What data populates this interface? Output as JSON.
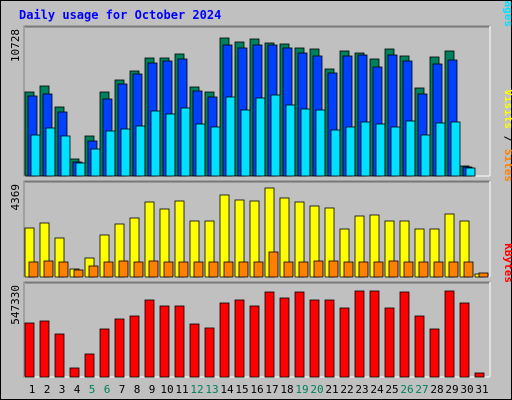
{
  "title": "Daily usage for October 2024",
  "colors": {
    "background": "#c0c0c0",
    "title": "#0000ff",
    "hits": "#00805c",
    "files": "#0040ff",
    "pages": "#00e0ff",
    "visits": "#ffff00",
    "sites": "#ff8000",
    "kbytes": "#ff0000",
    "weekend": "#00805c",
    "weekday": "#000000"
  },
  "chart_data": [
    {
      "type": "bar",
      "panel": "hits-files-pages",
      "max_label": "10728",
      "ymax": 10728,
      "right_label": [
        {
          "text": "Pages",
          "color": "#00e0ff"
        },
        {
          "text": " / ",
          "color": "#000000"
        },
        {
          "text": "Files",
          "color": "#0040ff"
        },
        {
          "text": " / ",
          "color": "#000000"
        },
        {
          "text": "Hits",
          "color": "#00805c"
        }
      ],
      "categories": [
        "1",
        "2",
        "3",
        "4",
        "5",
        "6",
        "7",
        "8",
        "9",
        "10",
        "11",
        "12",
        "13",
        "14",
        "15",
        "16",
        "17",
        "18",
        "19",
        "20",
        "21",
        "22",
        "23",
        "24",
        "25",
        "26",
        "27",
        "28",
        "29",
        "30",
        "31"
      ],
      "series": [
        {
          "name": "Hits",
          "color": "#00805c",
          "values": [
            6150,
            6570,
            5040,
            1230,
            2930,
            6150,
            7010,
            7660,
            8620,
            8620,
            8900,
            6510,
            6150,
            10040,
            9800,
            9980,
            9740,
            9620,
            9370,
            9250,
            7820,
            9130,
            8960,
            8530,
            9250,
            8770,
            6450,
            8660,
            9130,
            750,
            0
          ]
        },
        {
          "name": "Files",
          "color": "#0040ff",
          "values": [
            5820,
            5960,
            4700,
            1050,
            2570,
            5590,
            6720,
            7430,
            8240,
            8370,
            8520,
            6220,
            5800,
            9550,
            9360,
            9560,
            9550,
            9310,
            8960,
            8780,
            7500,
            8730,
            8840,
            7970,
            8850,
            8360,
            5990,
            8140,
            8480,
            640,
            0
          ]
        },
        {
          "name": "Pages",
          "color": "#00e0ff",
          "values": [
            3010,
            3500,
            2940,
            930,
            1940,
            3250,
            3430,
            3680,
            4750,
            4510,
            4930,
            3760,
            3610,
            5780,
            4810,
            5660,
            5900,
            5170,
            4890,
            4810,
            3390,
            3550,
            3920,
            3810,
            3540,
            4020,
            3010,
            3900,
            3910,
            580,
            0
          ]
        }
      ]
    },
    {
      "type": "bar",
      "panel": "visits-sites",
      "max_label": "4369",
      "ymax": 4369,
      "right_label": [
        {
          "text": "Sites",
          "color": "#ff8000"
        },
        {
          "text": " / ",
          "color": "#000000"
        },
        {
          "text": "Visits",
          "color": "#ffff00"
        }
      ],
      "categories": [
        "1",
        "2",
        "3",
        "4",
        "5",
        "6",
        "7",
        "8",
        "9",
        "10",
        "11",
        "12",
        "13",
        "14",
        "15",
        "16",
        "17",
        "18",
        "19",
        "20",
        "21",
        "22",
        "23",
        "24",
        "25",
        "26",
        "27",
        "28",
        "29",
        "30",
        "31"
      ],
      "series": [
        {
          "name": "Visits",
          "color": "#ffff00",
          "values": [
            2280,
            2520,
            1830,
            370,
            910,
            1990,
            2480,
            2770,
            3500,
            3210,
            3570,
            2630,
            2610,
            3840,
            3640,
            3560,
            4160,
            3690,
            3520,
            3320,
            3260,
            2250,
            2880,
            2890,
            2630,
            2640,
            2260,
            2250,
            2980,
            2620,
            150
          ]
        },
        {
          "name": "Sites",
          "color": "#ff8000",
          "values": [
            720,
            760,
            720,
            350,
            530,
            710,
            730,
            720,
            730,
            720,
            710,
            710,
            710,
            720,
            720,
            720,
            1170,
            720,
            720,
            730,
            730,
            700,
            720,
            720,
            730,
            720,
            720,
            720,
            700,
            690,
            170
          ]
        }
      ]
    },
    {
      "type": "bar",
      "panel": "kbytes",
      "max_label": "547330",
      "ymax": 547330,
      "right_label": [
        {
          "text": "KBytes",
          "color": "#ff0000"
        }
      ],
      "categories": [
        "1",
        "2",
        "3",
        "4",
        "5",
        "6",
        "7",
        "8",
        "9",
        "10",
        "11",
        "12",
        "13",
        "14",
        "15",
        "16",
        "17",
        "18",
        "19",
        "20",
        "21",
        "22",
        "23",
        "24",
        "25",
        "26",
        "27",
        "28",
        "29",
        "30",
        "31"
      ],
      "series": [
        {
          "name": "KBytes",
          "color": "#ff0000",
          "values": [
            318600,
            331100,
            257000,
            53900,
            135900,
            283700,
            342100,
            364500,
            456300,
            424900,
            422300,
            317100,
            289000,
            438200,
            459800,
            424900,
            503100,
            467600,
            505200,
            456300,
            456300,
            409800,
            508900,
            511000,
            409800,
            508600,
            360100,
            286200,
            511700,
            440700,
            21600
          ]
        }
      ]
    }
  ],
  "x_labels": [
    {
      "text": "1",
      "weekend": false
    },
    {
      "text": "2",
      "weekend": false
    },
    {
      "text": "3",
      "weekend": false
    },
    {
      "text": "4",
      "weekend": false
    },
    {
      "text": "5",
      "weekend": true
    },
    {
      "text": "6",
      "weekend": true
    },
    {
      "text": "7",
      "weekend": false
    },
    {
      "text": "8",
      "weekend": false
    },
    {
      "text": "9",
      "weekend": false
    },
    {
      "text": "10",
      "weekend": false
    },
    {
      "text": "11",
      "weekend": false
    },
    {
      "text": "12",
      "weekend": true
    },
    {
      "text": "13",
      "weekend": true
    },
    {
      "text": "14",
      "weekend": false
    },
    {
      "text": "15",
      "weekend": false
    },
    {
      "text": "16",
      "weekend": false
    },
    {
      "text": "17",
      "weekend": false
    },
    {
      "text": "18",
      "weekend": false
    },
    {
      "text": "19",
      "weekend": true
    },
    {
      "text": "20",
      "weekend": true
    },
    {
      "text": "21",
      "weekend": false
    },
    {
      "text": "22",
      "weekend": false
    },
    {
      "text": "23",
      "weekend": false
    },
    {
      "text": "24",
      "weekend": false
    },
    {
      "text": "25",
      "weekend": false
    },
    {
      "text": "26",
      "weekend": true
    },
    {
      "text": "27",
      "weekend": true
    },
    {
      "text": "28",
      "weekend": false
    },
    {
      "text": "29",
      "weekend": false
    },
    {
      "text": "30",
      "weekend": false
    },
    {
      "text": "31",
      "weekend": false
    }
  ]
}
